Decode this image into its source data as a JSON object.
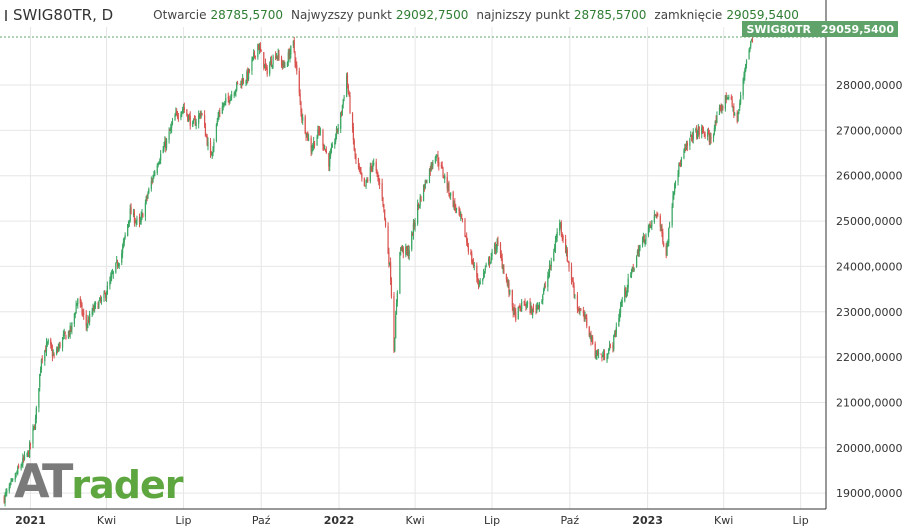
{
  "header": {
    "symbol": "SWIG80TR, D",
    "open_label": "Otwarcie",
    "open_value": "28785,5700",
    "high_label": "Najwyzszy punkt",
    "high_value": "29092,7500",
    "low_label": "najnizszy punkt",
    "low_value": "28785,5700",
    "close_label": "zamknięcie",
    "close_value": "29059,5400"
  },
  "price_badge": {
    "symbol": "SWIG80TR",
    "price": "29059,5400"
  },
  "logo": {
    "text_a": "AT",
    "text_b": "rader"
  },
  "colors": {
    "up": "#3aa663",
    "down": "#d9534f",
    "accent": "#5fa36a",
    "grid": "#e6e6e6"
  },
  "chart_data": {
    "type": "candlestick",
    "title": "SWIG80TR, D",
    "xlabel": "",
    "ylabel": "",
    "x_ticks": [
      "2021",
      "Kwi",
      "Lip",
      "Paź",
      "2022",
      "Kwi",
      "Lip",
      "Paź",
      "2023",
      "Kwi",
      "Lip"
    ],
    "x_tick_dates": [
      "2021-01-01",
      "2021-04-01",
      "2021-07-01",
      "2021-10-01",
      "2022-01-01",
      "2022-04-01",
      "2022-07-01",
      "2022-10-01",
      "2023-01-01",
      "2023-04-01",
      "2023-07-01"
    ],
    "y_ticks": [
      "19000,0000",
      "20000,0000",
      "21000,0000",
      "22000,0000",
      "23000,0000",
      "24000,0000",
      "25000,0000",
      "26000,0000",
      "27000,0000",
      "28000,0000"
    ],
    "y_tick_values": [
      19000,
      20000,
      21000,
      22000,
      23000,
      24000,
      25000,
      26000,
      27000,
      28000
    ],
    "ylim": [
      18650,
      29280
    ],
    "grid": true,
    "last_price": 29059.54,
    "series": [
      {
        "kind": "close_path",
        "points": [
          [
            "2020-12-01",
            18900
          ],
          [
            "2020-12-10",
            19200
          ],
          [
            "2020-12-20",
            19600
          ],
          [
            "2020-12-30",
            19900
          ],
          [
            "2021-01-07",
            20600
          ],
          [
            "2021-01-14",
            22000
          ],
          [
            "2021-01-22",
            22300
          ],
          [
            "2021-01-29",
            22000
          ],
          [
            "2021-02-08",
            22400
          ],
          [
            "2021-02-18",
            22600
          ],
          [
            "2021-02-26",
            23300
          ],
          [
            "2021-03-08",
            22700
          ],
          [
            "2021-03-18",
            23100
          ],
          [
            "2021-03-29",
            23300
          ],
          [
            "2021-04-08",
            23800
          ],
          [
            "2021-04-19",
            24300
          ],
          [
            "2021-04-29",
            25200
          ],
          [
            "2021-05-10",
            24900
          ],
          [
            "2021-05-20",
            25600
          ],
          [
            "2021-05-31",
            26300
          ],
          [
            "2021-06-10",
            26700
          ],
          [
            "2021-06-21",
            27300
          ],
          [
            "2021-07-01",
            27500
          ],
          [
            "2021-07-12",
            27100
          ],
          [
            "2021-07-22",
            27400
          ],
          [
            "2021-08-02",
            26400
          ],
          [
            "2021-08-12",
            27400
          ],
          [
            "2021-08-23",
            27700
          ],
          [
            "2021-09-03",
            28000
          ],
          [
            "2021-09-15",
            28200
          ],
          [
            "2021-09-27",
            28900
          ],
          [
            "2021-10-07",
            28300
          ],
          [
            "2021-10-18",
            28700
          ],
          [
            "2021-10-28",
            28400
          ],
          [
            "2021-11-08",
            28900
          ],
          [
            "2021-11-18",
            27300
          ],
          [
            "2021-11-29",
            26600
          ],
          [
            "2021-12-09",
            27000
          ],
          [
            "2021-12-20",
            26300
          ],
          [
            "2022-01-03",
            27300
          ],
          [
            "2022-01-10",
            28200
          ],
          [
            "2022-01-20",
            26400
          ],
          [
            "2022-01-31",
            25700
          ],
          [
            "2022-02-10",
            26300
          ],
          [
            "2022-02-21",
            25600
          ],
          [
            "2022-03-03",
            23800
          ],
          [
            "2022-03-07",
            22200
          ],
          [
            "2022-03-14",
            24400
          ],
          [
            "2022-03-24",
            24300
          ],
          [
            "2022-04-04",
            25300
          ],
          [
            "2022-04-14",
            25900
          ],
          [
            "2022-04-25",
            26500
          ],
          [
            "2022-05-05",
            26000
          ],
          [
            "2022-05-16",
            25400
          ],
          [
            "2022-05-26",
            25000
          ],
          [
            "2022-06-06",
            24200
          ],
          [
            "2022-06-16",
            23600
          ],
          [
            "2022-06-27",
            24100
          ],
          [
            "2022-07-07",
            24500
          ],
          [
            "2022-07-18",
            23700
          ],
          [
            "2022-07-28",
            22900
          ],
          [
            "2022-08-08",
            23200
          ],
          [
            "2022-08-18",
            23000
          ],
          [
            "2022-08-29",
            23300
          ],
          [
            "2022-09-08",
            24000
          ],
          [
            "2022-09-19",
            25000
          ],
          [
            "2022-09-29",
            24100
          ],
          [
            "2022-10-10",
            23100
          ],
          [
            "2022-10-20",
            22800
          ],
          [
            "2022-10-31",
            22100
          ],
          [
            "2022-11-10",
            22000
          ],
          [
            "2022-11-21",
            22300
          ],
          [
            "2022-12-01",
            23200
          ],
          [
            "2022-12-12",
            23800
          ],
          [
            "2022-12-22",
            24400
          ],
          [
            "2023-01-02",
            24800
          ],
          [
            "2023-01-12",
            25200
          ],
          [
            "2023-01-23",
            24300
          ],
          [
            "2023-02-02",
            25900
          ],
          [
            "2023-02-13",
            26500
          ],
          [
            "2023-02-23",
            26900
          ],
          [
            "2023-03-06",
            27000
          ],
          [
            "2023-03-16",
            26800
          ],
          [
            "2023-03-27",
            27400
          ],
          [
            "2023-04-06",
            27800
          ],
          [
            "2023-04-17",
            27200
          ],
          [
            "2023-04-27",
            28500
          ],
          [
            "2023-05-05",
            29059.54
          ]
        ]
      }
    ]
  }
}
